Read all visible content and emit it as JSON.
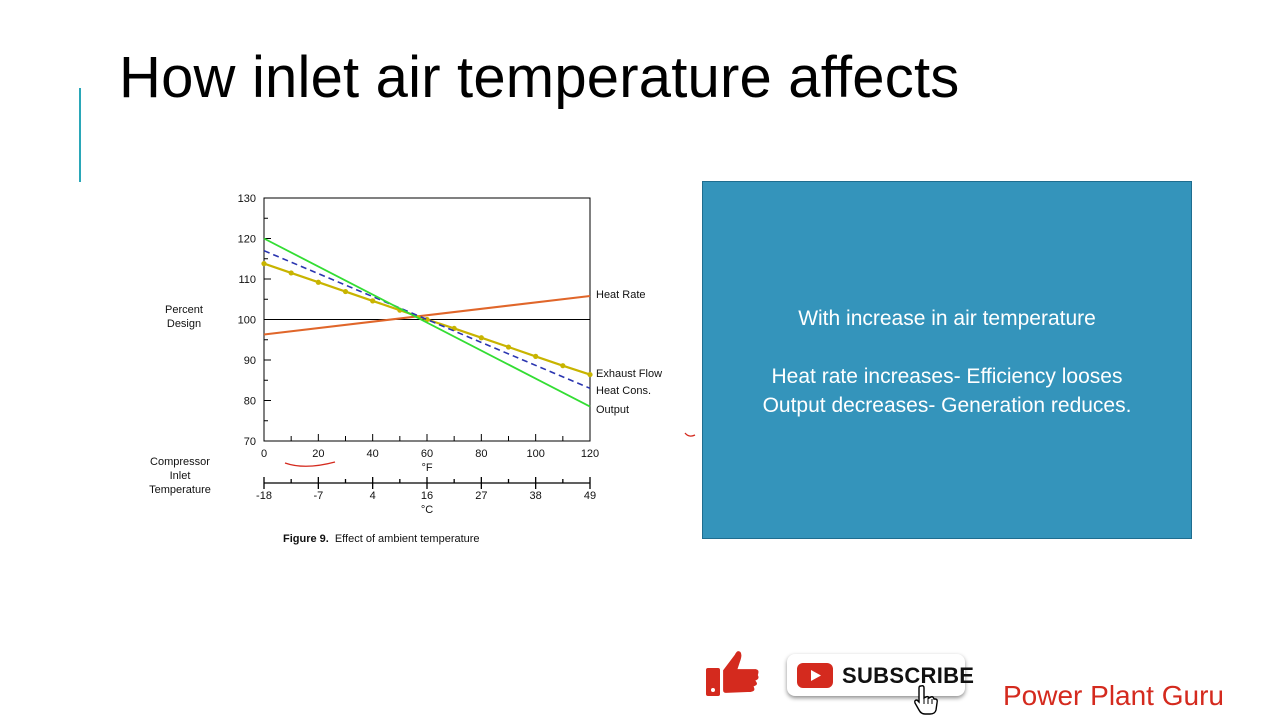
{
  "slide": {
    "title": "How inlet air temperature affects"
  },
  "info_box": {
    "line1": "With increase in air temperature",
    "line2": "Heat rate increases- Efficiency looses",
    "line3": "Output decreases- Generation reduces."
  },
  "subscribe": {
    "label": "SUBSCRIBE"
  },
  "brand": {
    "name": "Power Plant Guru"
  },
  "icons": [
    "like-icon",
    "youtube-icon",
    "cursor-hand-icon"
  ],
  "colors": {
    "accent": "#2aa7b8",
    "box_fill": "#3494bb",
    "brand": "#d42a1e",
    "heat_rate": "#e0662a",
    "exhaust_flow": "#c8b400",
    "heat_cons": "#2a35b0",
    "output": "#33dd33"
  },
  "chart_data": {
    "type": "line",
    "caption_bold": "Figure 9.",
    "caption": "Effect of ambient temperature",
    "ylabel": [
      "Percent",
      "Design"
    ],
    "xlabel": [
      "Compressor",
      "Inlet",
      "Temperature"
    ],
    "x_unit_f": "°F",
    "x_unit_c": "°C",
    "xlim": [
      0,
      120
    ],
    "ylim": [
      70,
      130
    ],
    "y_ticks": [
      70,
      80,
      90,
      100,
      110,
      120,
      130
    ],
    "x_ticks_f": [
      0,
      20,
      40,
      60,
      80,
      100,
      120
    ],
    "x_ticks_c": [
      {
        "label": "-18",
        "f": 0
      },
      {
        "label": "-7",
        "f": 20
      },
      {
        "label": "4",
        "f": 40
      },
      {
        "label": "16",
        "f": 60
      },
      {
        "label": "27",
        "f": 80
      },
      {
        "label": "38",
        "f": 100
      },
      {
        "label": "49",
        "f": 120
      }
    ],
    "reference_y": 100,
    "grid": false,
    "series": [
      {
        "name": "Heat Rate",
        "x": [
          0,
          120
        ],
        "y": [
          96.3,
          105.8
        ],
        "style": "solid"
      },
      {
        "name": "Exhaust Flow",
        "x": [
          0,
          10,
          20,
          30,
          40,
          50,
          60,
          70,
          80,
          90,
          100,
          110,
          120
        ],
        "y": [
          113.8,
          111.5,
          109.2,
          106.9,
          104.6,
          102.3,
          100,
          97.8,
          95.5,
          93.2,
          90.9,
          88.6,
          86.4
        ],
        "style": "dotted-markers"
      },
      {
        "name": "Heat Cons.",
        "x": [
          0,
          120
        ],
        "y": [
          117,
          83
        ],
        "style": "dashed"
      },
      {
        "name": "Output",
        "x": [
          0,
          120
        ],
        "y": [
          120,
          78.5
        ],
        "style": "solid"
      }
    ]
  }
}
